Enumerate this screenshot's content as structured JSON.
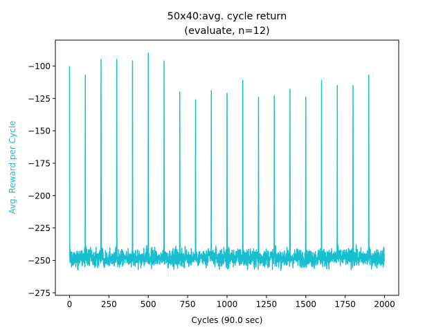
{
  "chart_data": {
    "type": "line",
    "title": "50x40:avg. cycle return",
    "subtitle": "(evaluate, n=12)",
    "xlabel": "Cycles (90.0 sec)",
    "ylabel": "Avg. Reward per Cycle",
    "xlim": [
      -90,
      2090
    ],
    "ylim": [
      -277,
      -80
    ],
    "xticks": [
      0,
      250,
      500,
      750,
      1000,
      1250,
      1500,
      1750,
      2000
    ],
    "xtick_labels": [
      "0",
      "250",
      "500",
      "750",
      "1000",
      "1250",
      "1500",
      "1750",
      "2000"
    ],
    "yticks": [
      -100,
      -125,
      -150,
      -175,
      -200,
      -225,
      -250,
      -275
    ],
    "ytick_labels": [
      "−100",
      "−125",
      "−150",
      "−175",
      "−200",
      "−225",
      "−250",
      "−275"
    ],
    "grid": false,
    "colors": {
      "series": "#17becf",
      "ylabel": "#17becf",
      "axes": "#000000"
    },
    "series": [
      {
        "baseline_mean": -248,
        "baseline_noise": 6.5,
        "baseline_min": -267,
        "baseline_max": -233,
        "x_range": [
          0,
          2000
        ],
        "spikes": [
          {
            "x": 0,
            "y": -100
          },
          {
            "x": 100,
            "y": -107
          },
          {
            "x": 200,
            "y": -95
          },
          {
            "x": 300,
            "y": -95
          },
          {
            "x": 400,
            "y": -96
          },
          {
            "x": 500,
            "y": -90
          },
          {
            "x": 600,
            "y": -96
          },
          {
            "x": 700,
            "y": -120
          },
          {
            "x": 800,
            "y": -126
          },
          {
            "x": 900,
            "y": -119
          },
          {
            "x": 1000,
            "y": -121
          },
          {
            "x": 1100,
            "y": -111
          },
          {
            "x": 1200,
            "y": -124
          },
          {
            "x": 1300,
            "y": -123
          },
          {
            "x": 1400,
            "y": -118
          },
          {
            "x": 1500,
            "y": -124
          },
          {
            "x": 1600,
            "y": -111
          },
          {
            "x": 1700,
            "y": -115
          },
          {
            "x": 1800,
            "y": -115
          },
          {
            "x": 1900,
            "y": -107
          }
        ]
      }
    ]
  }
}
